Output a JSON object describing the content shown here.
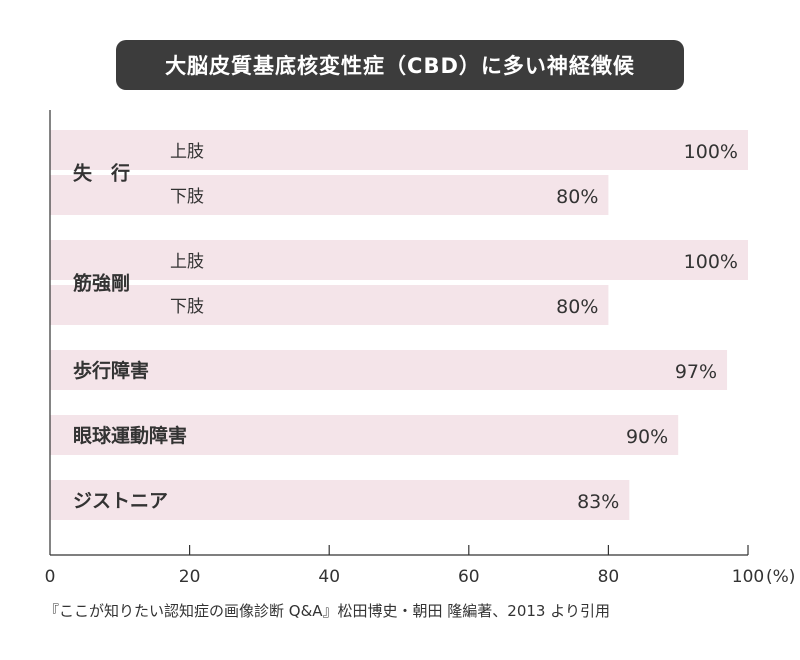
{
  "title": "大脳皮質基底核変性症（CBD）に多い神経徴候",
  "citation": "『ここが知りたい認知症の画像診断 Q&A』松田博史・朝田 隆編著、2013 より引用",
  "colors": {
    "bar": "#f4e4e9",
    "axis": "#333333",
    "title_bg": "#3c3c3c",
    "text": "#333333"
  },
  "chart_data": {
    "type": "bar",
    "orientation": "horizontal",
    "xlim": [
      0,
      100
    ],
    "x_ticks": [
      "0",
      "20",
      "40",
      "60",
      "80",
      "100"
    ],
    "x_unit": "(%)",
    "groups": [
      {
        "label": "失　行",
        "bars": [
          {
            "sub": "上肢",
            "value": 100,
            "label": "100%"
          },
          {
            "sub": "下肢",
            "value": 80,
            "label": "80%"
          }
        ]
      },
      {
        "label": "筋強剛",
        "bars": [
          {
            "sub": "上肢",
            "value": 100,
            "label": "100%"
          },
          {
            "sub": "下肢",
            "value": 80,
            "label": "80%"
          }
        ]
      },
      {
        "label": "歩行障害",
        "bars": [
          {
            "sub": "",
            "value": 97,
            "label": "97%"
          }
        ]
      },
      {
        "label": "眼球運動障害",
        "bars": [
          {
            "sub": "",
            "value": 90,
            "label": "90%"
          }
        ]
      },
      {
        "label": "ジストニア",
        "bars": [
          {
            "sub": "",
            "value": 83,
            "label": "83%"
          }
        ]
      }
    ]
  }
}
